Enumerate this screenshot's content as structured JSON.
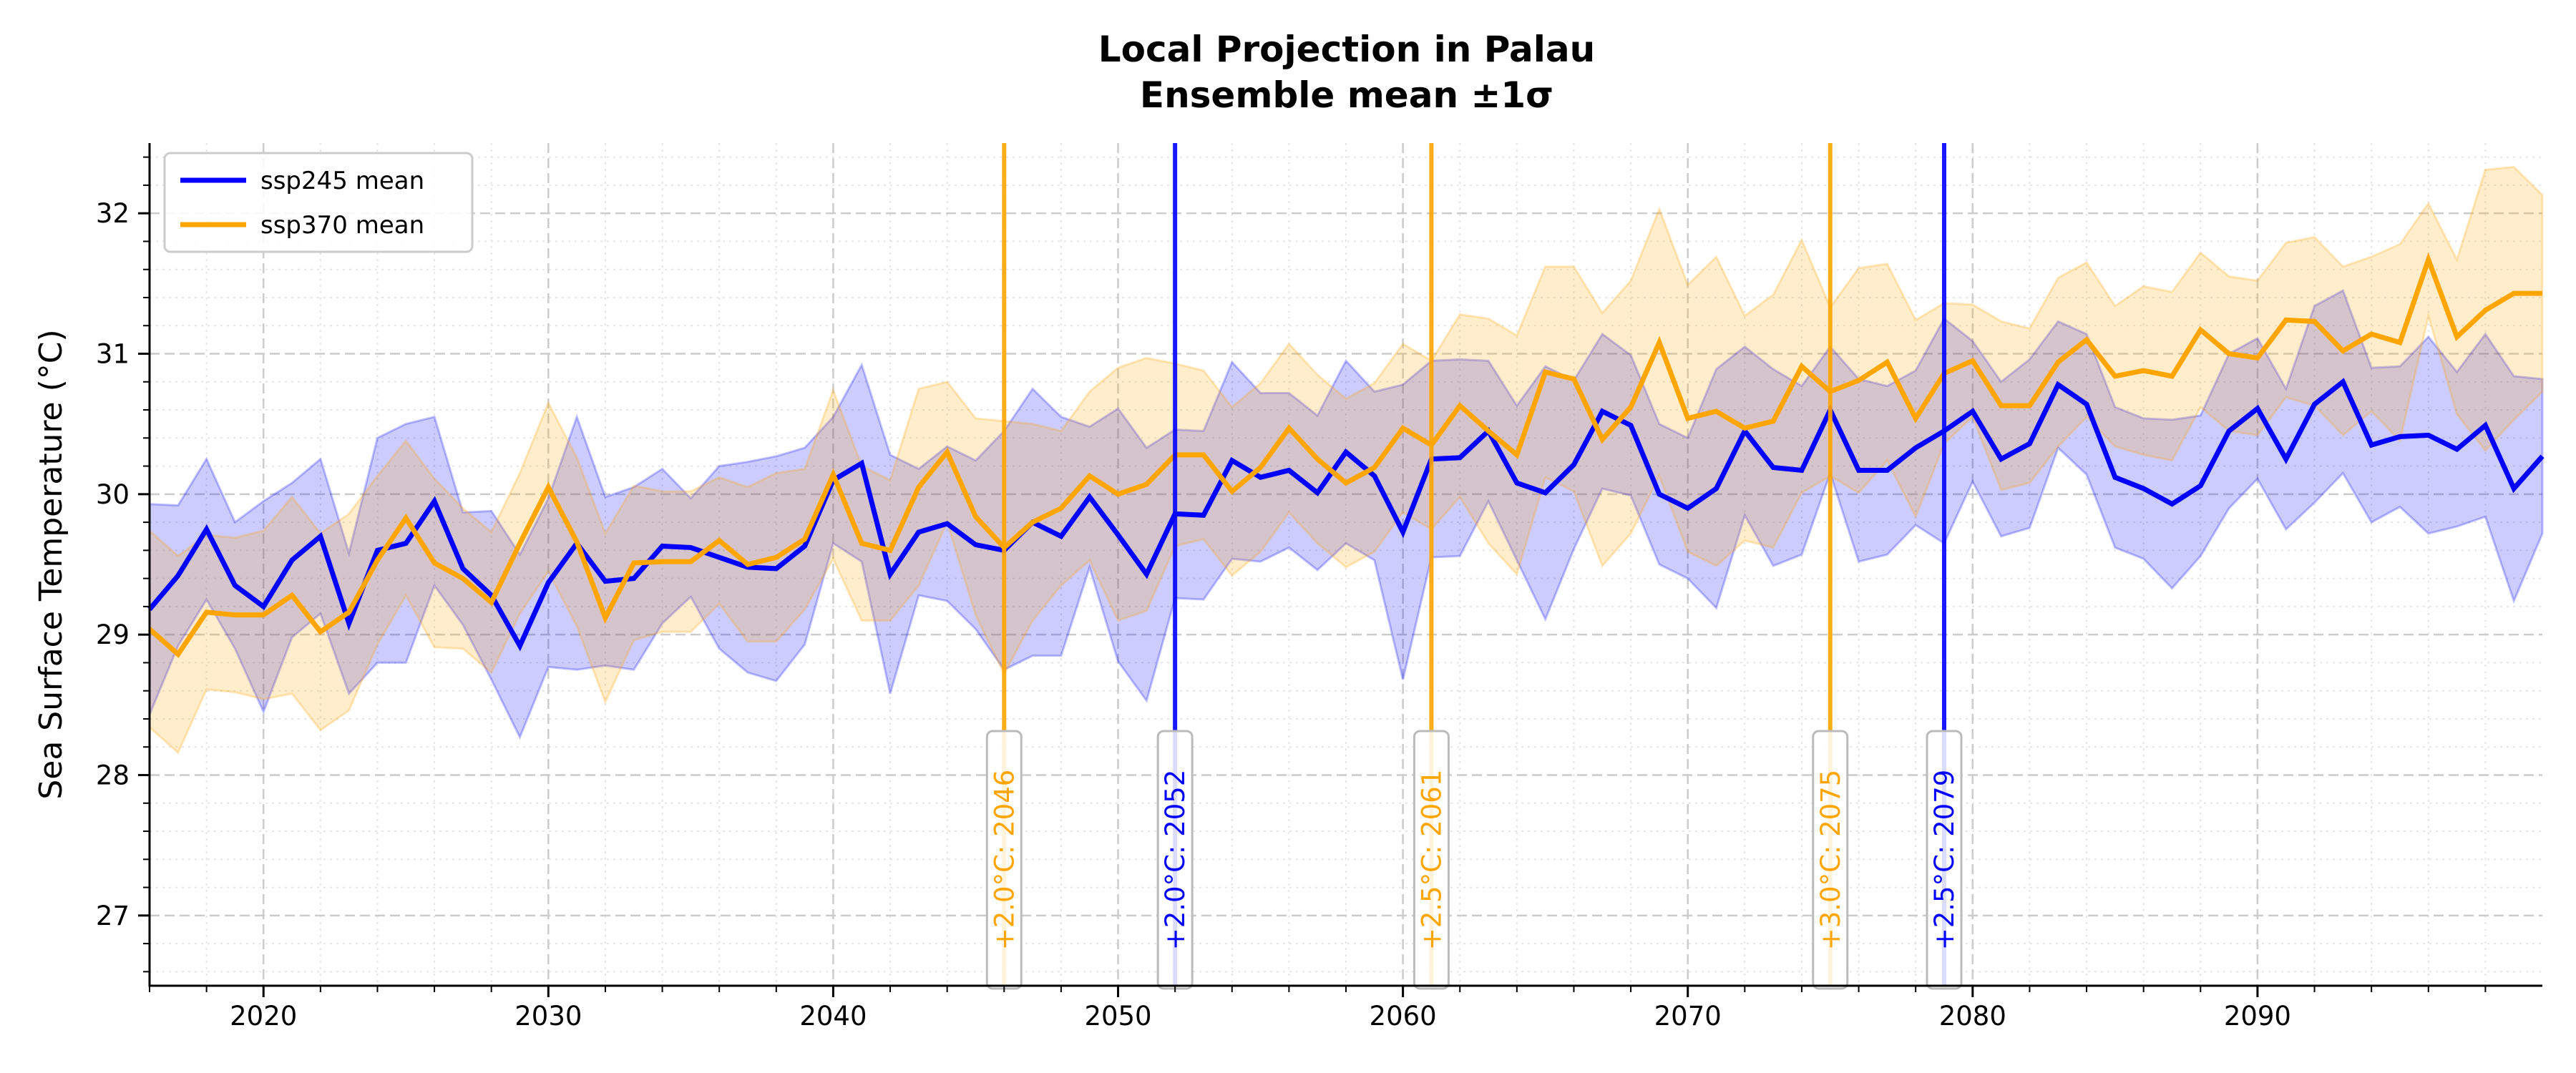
{
  "chart_data": {
    "type": "line",
    "title": "Local Projection in Palau",
    "subtitle": "Ensemble mean ±1σ",
    "xlabel": "",
    "ylabel": "Sea Surface Temperature (°C)",
    "xlim": [
      2016,
      2100
    ],
    "ylim": [
      26.5,
      32.5
    ],
    "x_ticks": [
      2020,
      2030,
      2040,
      2050,
      2060,
      2070,
      2080,
      2090
    ],
    "y_ticks": [
      27,
      28,
      29,
      30,
      31,
      32
    ],
    "grid": true,
    "legend_position": "top-left",
    "x_start": 2016,
    "series": [
      {
        "name": "ssp245 mean",
        "color": "#0000ff",
        "band_label": "±1σ",
        "values": [
          29.18,
          29.42,
          29.75,
          29.35,
          29.2,
          29.53,
          29.7,
          29.08,
          29.6,
          29.65,
          29.95,
          29.47,
          29.28,
          28.92,
          29.37,
          29.65,
          29.38,
          29.4,
          29.63,
          29.62,
          29.55,
          29.48,
          29.47,
          29.63,
          30.1,
          30.22,
          29.43,
          29.73,
          29.79,
          29.64,
          29.6,
          29.8,
          29.7,
          29.98,
          29.71,
          29.43,
          29.86,
          29.85,
          30.24,
          30.12,
          30.17,
          30.01,
          30.3,
          30.13,
          29.73,
          30.25,
          30.26,
          30.45,
          30.08,
          30.01,
          30.21,
          30.59,
          30.49,
          30.0,
          29.9,
          30.04,
          30.45,
          30.19,
          30.17,
          30.6,
          30.17,
          30.17,
          30.33,
          30.45,
          30.59,
          30.25,
          30.36,
          30.78,
          30.64,
          30.12,
          30.04,
          29.93,
          30.06,
          30.45,
          30.61,
          30.25,
          30.64,
          30.8,
          30.35,
          30.41,
          30.42,
          30.32,
          30.49,
          30.04,
          30.27
        ],
        "std": [
          0.75,
          0.5,
          0.5,
          0.45,
          0.75,
          0.55,
          0.55,
          0.5,
          0.8,
          0.85,
          0.6,
          0.4,
          0.6,
          0.65,
          0.6,
          0.9,
          0.6,
          0.65,
          0.55,
          0.35,
          0.65,
          0.75,
          0.8,
          0.7,
          0.45,
          0.7,
          0.85,
          0.45,
          0.55,
          0.6,
          0.85,
          0.95,
          0.85,
          0.5,
          0.9,
          0.9,
          0.6,
          0.6,
          0.7,
          0.6,
          0.55,
          0.55,
          0.65,
          0.6,
          1.05,
          0.7,
          0.7,
          0.5,
          0.55,
          0.9,
          0.6,
          0.55,
          0.5,
          0.5,
          0.5,
          0.85,
          0.6,
          0.7,
          0.6,
          0.45,
          0.65,
          0.6,
          0.55,
          0.8,
          0.5,
          0.55,
          0.6,
          0.45,
          0.5,
          0.5,
          0.5,
          0.6,
          0.5,
          0.55,
          0.5,
          0.5,
          0.7,
          0.65,
          0.55,
          0.5,
          0.7,
          0.55,
          0.65,
          0.8,
          0.55
        ]
      },
      {
        "name": "ssp370 mean",
        "color": "#ffa500",
        "band_label": "±1σ",
        "values": [
          29.04,
          28.86,
          29.16,
          29.14,
          29.14,
          29.28,
          29.02,
          29.16,
          29.53,
          29.83,
          29.51,
          29.4,
          29.23,
          29.65,
          30.05,
          29.66,
          29.12,
          29.51,
          29.52,
          29.52,
          29.67,
          29.5,
          29.55,
          29.68,
          30.14,
          29.65,
          29.6,
          30.05,
          30.3,
          29.84,
          29.62,
          29.8,
          29.9,
          30.13,
          30.0,
          30.07,
          30.28,
          30.28,
          30.02,
          30.19,
          30.47,
          30.25,
          30.08,
          30.19,
          30.47,
          30.35,
          30.63,
          30.45,
          30.28,
          30.87,
          30.82,
          30.39,
          30.62,
          31.08,
          30.54,
          30.59,
          30.47,
          30.52,
          30.91,
          30.73,
          30.81,
          30.94,
          30.54,
          30.86,
          30.95,
          30.63,
          30.63,
          30.94,
          31.1,
          30.84,
          30.88,
          30.84,
          31.17,
          31.0,
          30.97,
          31.24,
          31.23,
          31.02,
          31.14,
          31.08,
          31.67,
          31.12,
          31.31,
          31.43,
          31.43
        ],
        "std": [
          0.7,
          0.7,
          0.55,
          0.55,
          0.6,
          0.7,
          0.7,
          0.7,
          0.6,
          0.55,
          0.6,
          0.5,
          0.5,
          0.5,
          0.6,
          0.6,
          0.6,
          0.55,
          0.5,
          0.5,
          0.45,
          0.55,
          0.6,
          0.5,
          0.6,
          0.55,
          0.5,
          0.7,
          0.5,
          0.7,
          0.9,
          0.7,
          0.55,
          0.6,
          0.9,
          0.9,
          0.65,
          0.6,
          0.6,
          0.6,
          0.6,
          0.6,
          0.6,
          0.6,
          0.6,
          0.6,
          0.65,
          0.8,
          0.85,
          0.75,
          0.8,
          0.9,
          0.9,
          0.95,
          0.95,
          1.1,
          0.8,
          0.9,
          0.9,
          0.6,
          0.8,
          0.7,
          0.7,
          0.5,
          0.4,
          0.6,
          0.55,
          0.6,
          0.55,
          0.5,
          0.6,
          0.6,
          0.55,
          0.55,
          0.55,
          0.55,
          0.6,
          0.6,
          0.55,
          0.7,
          0.4,
          0.55,
          1.0,
          0.9,
          0.7
        ]
      }
    ],
    "threshold_markers": [
      {
        "year": 2046,
        "scenario": "ssp370",
        "color": "#ffa500",
        "label": "+2.0°C: 2046"
      },
      {
        "year": 2052,
        "scenario": "ssp245",
        "color": "#0000ff",
        "label": "+2.0°C: 2052"
      },
      {
        "year": 2061,
        "scenario": "ssp370",
        "color": "#ffa500",
        "label": "+2.5°C: 2061"
      },
      {
        "year": 2075,
        "scenario": "ssp370",
        "color": "#ffa500",
        "label": "+3.0°C: 2075"
      },
      {
        "year": 2079,
        "scenario": "ssp245",
        "color": "#0000ff",
        "label": "+2.5°C: 2079"
      }
    ]
  }
}
